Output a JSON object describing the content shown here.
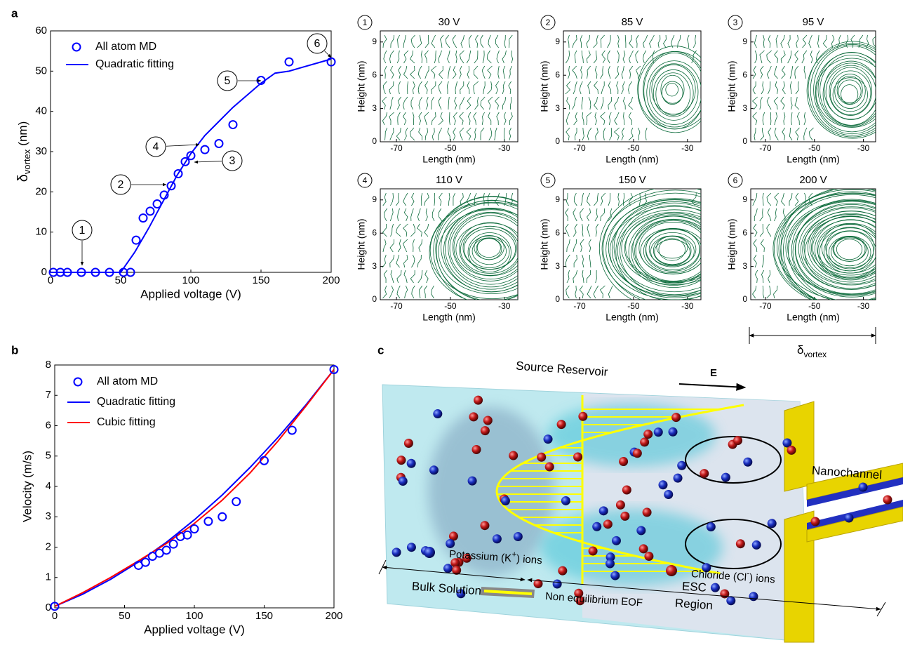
{
  "panel_labels": [
    "a",
    "b",
    "c"
  ],
  "chart_data": [
    {
      "type": "scatter-line",
      "xlabel": "Applied voltage (V)",
      "ylabel": {
        "symbol": "δ",
        "sub": "vortex",
        "unit": "(nm)"
      },
      "xlim": [
        0,
        200
      ],
      "xticks": [
        0,
        50,
        100,
        150,
        200
      ],
      "ylim": [
        0,
        60
      ],
      "yticks": [
        0,
        10,
        20,
        30,
        40,
        50,
        60
      ],
      "legend": "upper left",
      "series": [
        {
          "name": "All atom MD",
          "color": "#0000ff",
          "marker": "circle",
          "x": [
            2,
            7,
            12,
            22,
            32,
            42,
            52,
            57,
            61,
            66,
            71,
            76,
            81,
            86,
            91,
            96,
            100,
            110,
            120,
            130,
            150,
            170,
            200
          ],
          "values": [
            0,
            0,
            0,
            0,
            0,
            0,
            0,
            0,
            8,
            13.5,
            15.2,
            17,
            19.2,
            21.5,
            24.5,
            27.5,
            29,
            30.5,
            32,
            36.7,
            47.7,
            52.3,
            52.3
          ]
        },
        {
          "name": "Quadratic fitting",
          "color": "#0000ff",
          "marker": "line",
          "x": [
            0,
            50,
            60,
            70,
            80,
            90,
            100,
            110,
            120,
            130,
            140,
            150,
            160,
            170,
            180,
            190,
            200
          ],
          "values": [
            0,
            0,
            5,
            11,
            17.5,
            24,
            29.5,
            34,
            37.5,
            41,
            44,
            47,
            49.5,
            50,
            51,
            52,
            53
          ]
        }
      ],
      "annotations": [
        "1",
        "2",
        "3",
        "4",
        "5",
        "6"
      ]
    },
    {
      "type": "streamline",
      "label": "1",
      "title": "30 V",
      "xlabel": "Length (nm)",
      "ylabel": "Height (nm)",
      "xlim": [
        -76,
        -25
      ],
      "xticks": [
        -70,
        -50,
        -30
      ],
      "ylim": [
        0,
        10
      ],
      "yticks": [
        0,
        3,
        6,
        9
      ]
    },
    {
      "type": "streamline",
      "label": "2",
      "title": "85 V",
      "xlabel": "Length (nm)",
      "ylabel": "Height (nm)",
      "xlim": [
        -76,
        -25
      ],
      "xticks": [
        -70,
        -50,
        -30
      ],
      "ylim": [
        0,
        10
      ],
      "yticks": [
        0,
        3,
        6,
        9
      ]
    },
    {
      "type": "streamline",
      "label": "3",
      "title": "95 V",
      "xlabel": "Length (nm)",
      "ylabel": "Height (nm)",
      "xlim": [
        -76,
        -25
      ],
      "xticks": [
        -70,
        -50,
        -30
      ],
      "ylim": [
        0,
        10
      ],
      "yticks": [
        0,
        3,
        6,
        9
      ]
    },
    {
      "type": "streamline",
      "label": "4",
      "title": "110 V",
      "xlabel": "Length (nm)",
      "ylabel": "Height (nm)",
      "xlim": [
        -76,
        -25
      ],
      "xticks": [
        -70,
        -50,
        -30
      ],
      "ylim": [
        0,
        10
      ],
      "yticks": [
        0,
        3,
        6,
        9
      ]
    },
    {
      "type": "streamline",
      "label": "5",
      "title": "150 V",
      "xlabel": "Length (nm)",
      "ylabel": "Height (nm)",
      "xlim": [
        -76,
        -25
      ],
      "xticks": [
        -70,
        -50,
        -30
      ],
      "ylim": [
        0,
        10
      ],
      "yticks": [
        0,
        3,
        6,
        9
      ]
    },
    {
      "type": "streamline",
      "label": "6",
      "title": "200 V",
      "xlabel": "Length (nm)",
      "ylabel": "Height (nm)",
      "xlim": [
        -76,
        -25
      ],
      "xticks": [
        -70,
        -50,
        -30
      ],
      "ylim": [
        0,
        10
      ],
      "yticks": [
        0,
        3,
        6,
        9
      ]
    },
    {
      "type": "scatter-line",
      "xlabel": "Applied voltage (V)",
      "ylabel": "Velocity (m/s)",
      "xlim": [
        0,
        200
      ],
      "xticks": [
        0,
        50,
        100,
        150,
        200
      ],
      "ylim": [
        0,
        8
      ],
      "yticks": [
        0,
        1,
        2,
        3,
        4,
        5,
        6,
        7,
        8
      ],
      "legend": "upper left",
      "series": [
        {
          "name": "All atom MD",
          "color": "#0000ff",
          "marker": "circle",
          "x": [
            0,
            60,
            65,
            70,
            75,
            80,
            85,
            90,
            95,
            100,
            110,
            120,
            130,
            150,
            170,
            200
          ],
          "values": [
            0.05,
            1.4,
            1.5,
            1.7,
            1.8,
            1.9,
            2.1,
            2.35,
            2.4,
            2.6,
            2.85,
            3.0,
            3.5,
            4.85,
            5.85,
            7.85
          ]
        },
        {
          "name": "Quadratic fitting",
          "color": "#0000ff",
          "marker": "line",
          "x": [
            0,
            20,
            40,
            60,
            80,
            100,
            120,
            140,
            160,
            180,
            200
          ],
          "values": [
            0.05,
            0.45,
            0.94,
            1.51,
            2.16,
            2.9,
            3.72,
            4.63,
            5.62,
            6.69,
            7.85
          ]
        },
        {
          "name": "Cubic fitting",
          "color": "#ff0000",
          "marker": "line",
          "x": [
            0,
            20,
            40,
            60,
            80,
            100,
            120,
            140,
            160,
            180,
            200
          ],
          "values": [
            0.05,
            0.5,
            1.0,
            1.55,
            2.12,
            2.78,
            3.55,
            4.45,
            5.5,
            6.65,
            7.85
          ]
        }
      ]
    }
  ],
  "vortex_scale": {
    "symbol": "δ",
    "sub": "vortex"
  },
  "diagram": {
    "source_reservoir": "Source Reservoir",
    "field": "E",
    "nanochannel": "Nanochannel",
    "bulk_solution": "Bulk Solution",
    "esc": "ESC",
    "region": "Region",
    "potassium": {
      "text": "Potassium (K",
      "sup": "+",
      "end": ") ions"
    },
    "chloride": {
      "text": "Chloride (Cl",
      "sup": "-",
      "end": ") ions"
    },
    "eof": "Non equilibrium EOF"
  }
}
